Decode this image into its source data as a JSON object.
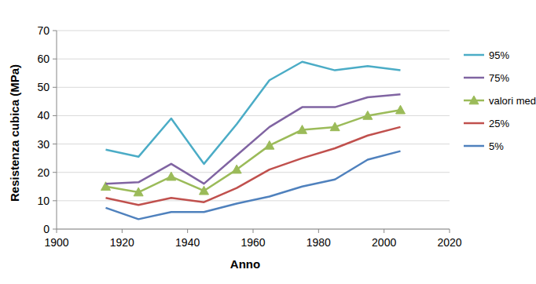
{
  "chart_data": {
    "type": "line",
    "x_label": "Anno",
    "y_label": "Resistenza cubica (MPa)",
    "x": [
      1915,
      1925,
      1935,
      1945,
      1955,
      1965,
      1975,
      1985,
      1995,
      2005
    ],
    "series": [
      {
        "name": "95%",
        "color": "#4bacc6",
        "marker": "none",
        "values": [
          28,
          25.5,
          39,
          23,
          37,
          52.5,
          59,
          56,
          57.5,
          56
        ]
      },
      {
        "name": "75%",
        "color": "#8064a2",
        "marker": "none",
        "values": [
          16,
          16.5,
          23,
          16,
          26,
          36,
          43,
          43,
          46.5,
          47.5
        ]
      },
      {
        "name": "valori medi",
        "color": "#9bbb59",
        "marker": "triangle",
        "values": [
          15,
          13,
          18.5,
          13.5,
          21,
          29.5,
          35,
          36,
          40,
          42
        ]
      },
      {
        "name": "25%",
        "color": "#c0504d",
        "marker": "none",
        "values": [
          11,
          8.5,
          11,
          9.5,
          14.5,
          21,
          25,
          28.5,
          33,
          36
        ]
      },
      {
        "name": "5%",
        "color": "#4f81bd",
        "marker": "none",
        "values": [
          7.5,
          3.5,
          6,
          6,
          9,
          11.5,
          15,
          17.5,
          24.5,
          27.5
        ]
      }
    ],
    "xlim": [
      1900,
      2020
    ],
    "xticks": [
      1900,
      1920,
      1940,
      1960,
      1980,
      2000,
      2020
    ],
    "ylim": [
      0,
      70
    ],
    "yticks": [
      0,
      10,
      20,
      30,
      40,
      50,
      60,
      70
    ],
    "grid": true,
    "legend": "right"
  }
}
